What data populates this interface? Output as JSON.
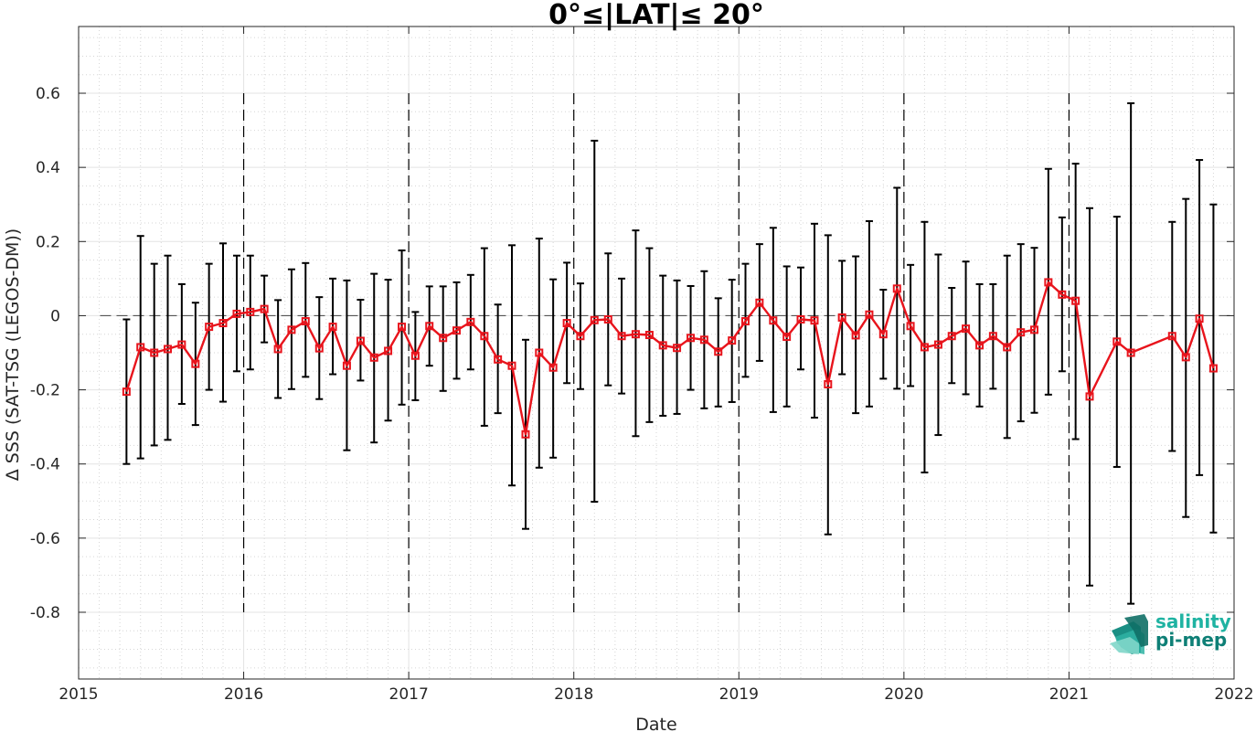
{
  "chart_data": {
    "type": "line",
    "title": "0°≤|LAT|≤ 20°",
    "xlabel": "Date",
    "ylabel": "Δ SSS (SAT-TSG (LEGOS-DM))",
    "xlim": [
      2015,
      2022
    ],
    "ylim": [
      -0.98,
      0.78
    ],
    "x_ticks": [
      "2015",
      "2016",
      "2017",
      "2018",
      "2019",
      "2020",
      "2021",
      "2022"
    ],
    "y_ticks": [
      "-0.8",
      "-0.6",
      "-0.4",
      "-0.2",
      "0",
      "0.2",
      "0.4",
      "0.6"
    ],
    "grid": true,
    "minor_grid": true,
    "year_separators": [
      2016,
      2017,
      2018,
      2019,
      2020,
      2021
    ],
    "year_separator_range": [
      -0.8,
      0.6
    ],
    "zero_line": 0,
    "series": [
      {
        "color": "#e8141c",
        "errorbar_color": "#000000",
        "marker": "square",
        "x": [
          2015.29,
          2015.375,
          2015.458,
          2015.54,
          2015.625,
          2015.708,
          2015.79,
          2015.875,
          2015.958,
          2016.04,
          2016.125,
          2016.208,
          2016.29,
          2016.375,
          2016.458,
          2016.54,
          2016.625,
          2016.708,
          2016.79,
          2016.875,
          2016.958,
          2017.04,
          2017.125,
          2017.208,
          2017.29,
          2017.375,
          2017.458,
          2017.54,
          2017.625,
          2017.708,
          2017.79,
          2017.875,
          2017.958,
          2018.04,
          2018.125,
          2018.208,
          2018.29,
          2018.375,
          2018.458,
          2018.54,
          2018.625,
          2018.708,
          2018.79,
          2018.875,
          2018.958,
          2019.04,
          2019.125,
          2019.208,
          2019.29,
          2019.375,
          2019.458,
          2019.54,
          2019.625,
          2019.708,
          2019.79,
          2019.875,
          2019.958,
          2020.04,
          2020.125,
          2020.208,
          2020.29,
          2020.375,
          2020.458,
          2020.54,
          2020.625,
          2020.708,
          2020.79,
          2020.875,
          2020.958,
          2021.04,
          2021.125,
          2021.29,
          2021.375,
          2021.625,
          2021.708,
          2021.79,
          2021.875
        ],
        "y": [
          -0.205,
          -0.085,
          -0.1,
          -0.09,
          -0.078,
          -0.13,
          -0.03,
          -0.02,
          0.005,
          0.01,
          0.018,
          -0.09,
          -0.038,
          -0.015,
          -0.088,
          -0.03,
          -0.135,
          -0.068,
          -0.113,
          -0.095,
          -0.03,
          -0.108,
          -0.028,
          -0.06,
          -0.04,
          -0.017,
          -0.055,
          -0.118,
          -0.135,
          -0.32,
          -0.1,
          -0.14,
          -0.02,
          -0.055,
          -0.012,
          -0.01,
          -0.055,
          -0.05,
          -0.052,
          -0.08,
          -0.087,
          -0.06,
          -0.065,
          -0.097,
          -0.067,
          -0.015,
          0.035,
          -0.013,
          -0.057,
          -0.01,
          -0.013,
          -0.185,
          -0.005,
          -0.053,
          0.003,
          -0.05,
          0.073,
          -0.028,
          -0.085,
          -0.078,
          -0.055,
          -0.035,
          -0.08,
          -0.055,
          -0.085,
          -0.045,
          -0.038,
          0.09,
          0.057,
          0.04,
          -0.218,
          -0.07,
          -0.1,
          -0.055,
          -0.112,
          -0.008,
          -0.142
        ],
        "err_low": [
          -0.4,
          -0.385,
          -0.35,
          -0.335,
          -0.238,
          -0.295,
          -0.2,
          -0.232,
          -0.15,
          -0.145,
          -0.072,
          -0.222,
          -0.198,
          -0.165,
          -0.225,
          -0.158,
          -0.363,
          -0.175,
          -0.342,
          -0.283,
          -0.24,
          -0.228,
          -0.135,
          -0.203,
          -0.17,
          -0.145,
          -0.297,
          -0.263,
          -0.458,
          -0.575,
          -0.41,
          -0.383,
          -0.182,
          -0.198,
          -0.502,
          -0.188,
          -0.21,
          -0.325,
          -0.287,
          -0.27,
          -0.265,
          -0.2,
          -0.25,
          -0.245,
          -0.233,
          -0.165,
          -0.122,
          -0.26,
          -0.245,
          -0.145,
          -0.275,
          -0.59,
          -0.158,
          -0.263,
          -0.245,
          -0.17,
          -0.197,
          -0.19,
          -0.423,
          -0.322,
          -0.182,
          -0.212,
          -0.245,
          -0.197,
          -0.33,
          -0.285,
          -0.262,
          -0.213,
          -0.15,
          -0.333,
          -0.728,
          -0.408,
          -0.777,
          -0.365,
          -0.543,
          -0.43,
          -0.585
        ],
        "err_high": [
          -0.01,
          0.215,
          0.14,
          0.162,
          0.085,
          0.035,
          0.14,
          0.195,
          0.162,
          0.162,
          0.108,
          0.042,
          0.125,
          0.142,
          0.05,
          0.1,
          0.095,
          0.043,
          0.113,
          0.097,
          0.176,
          0.01,
          0.079,
          0.079,
          0.09,
          0.11,
          0.182,
          0.03,
          0.19,
          -0.065,
          0.208,
          0.098,
          0.143,
          0.087,
          0.472,
          0.168,
          0.1,
          0.23,
          0.182,
          0.108,
          0.095,
          0.08,
          0.12,
          0.047,
          0.097,
          0.14,
          0.193,
          0.237,
          0.133,
          0.13,
          0.248,
          0.217,
          0.148,
          0.16,
          0.255,
          0.07,
          0.345,
          0.137,
          0.253,
          0.165,
          0.075,
          0.146,
          0.085,
          0.085,
          0.162,
          0.193,
          0.183,
          0.396,
          0.265,
          0.41,
          0.29,
          0.267,
          0.573,
          0.253,
          0.315,
          0.42,
          0.3
        ]
      }
    ]
  },
  "logo": {
    "line1": "salinity",
    "line2": "pi-mep",
    "color1": "#1fb3a2",
    "color2": "#0e7f76"
  }
}
